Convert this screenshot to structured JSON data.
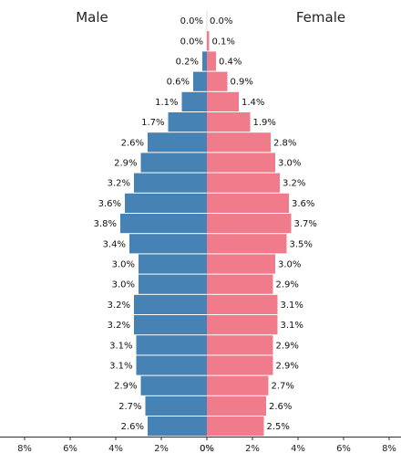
{
  "chart_data": {
    "type": "bar",
    "orientation": "horizontal",
    "layout": "population-pyramid",
    "colors": {
      "male": "#4682b4",
      "female": "#f07b8b"
    },
    "xlim": [
      0,
      8
    ],
    "ticks": [
      "8%",
      "6%",
      "4%",
      "2%",
      "0%",
      "0%",
      "2%",
      "4%",
      "6%",
      "8%"
    ],
    "rows_top_to_bottom": 21,
    "series": [
      {
        "name": "Male",
        "values": [
          0.0,
          0.0,
          0.2,
          0.6,
          1.1,
          1.7,
          2.6,
          2.9,
          3.2,
          3.6,
          3.8,
          3.4,
          3.0,
          3.0,
          3.2,
          3.2,
          3.1,
          3.1,
          2.9,
          2.7,
          2.6
        ],
        "labels": [
          "0.0%",
          "0.0%",
          "0.2%",
          "0.6%",
          "1.1%",
          "1.7%",
          "2.6%",
          "2.9%",
          "3.2%",
          "3.6%",
          "3.8%",
          "3.4%",
          "3.0%",
          "3.0%",
          "3.2%",
          "3.2%",
          "3.1%",
          "3.1%",
          "2.9%",
          "2.7%",
          "2.6%"
        ]
      },
      {
        "name": "Female",
        "values": [
          0.0,
          0.1,
          0.4,
          0.9,
          1.4,
          1.9,
          2.8,
          3.0,
          3.2,
          3.6,
          3.7,
          3.5,
          3.0,
          2.9,
          3.1,
          3.1,
          2.9,
          2.9,
          2.7,
          2.6,
          2.5
        ],
        "labels": [
          "0.0%",
          "0.1%",
          "0.4%",
          "0.9%",
          "1.4%",
          "1.9%",
          "2.8%",
          "3.0%",
          "3.2%",
          "3.6%",
          "3.7%",
          "3.5%",
          "3.0%",
          "2.9%",
          "3.1%",
          "3.1%",
          "2.9%",
          "2.9%",
          "2.7%",
          "2.6%",
          "2.5%"
        ]
      }
    ]
  }
}
